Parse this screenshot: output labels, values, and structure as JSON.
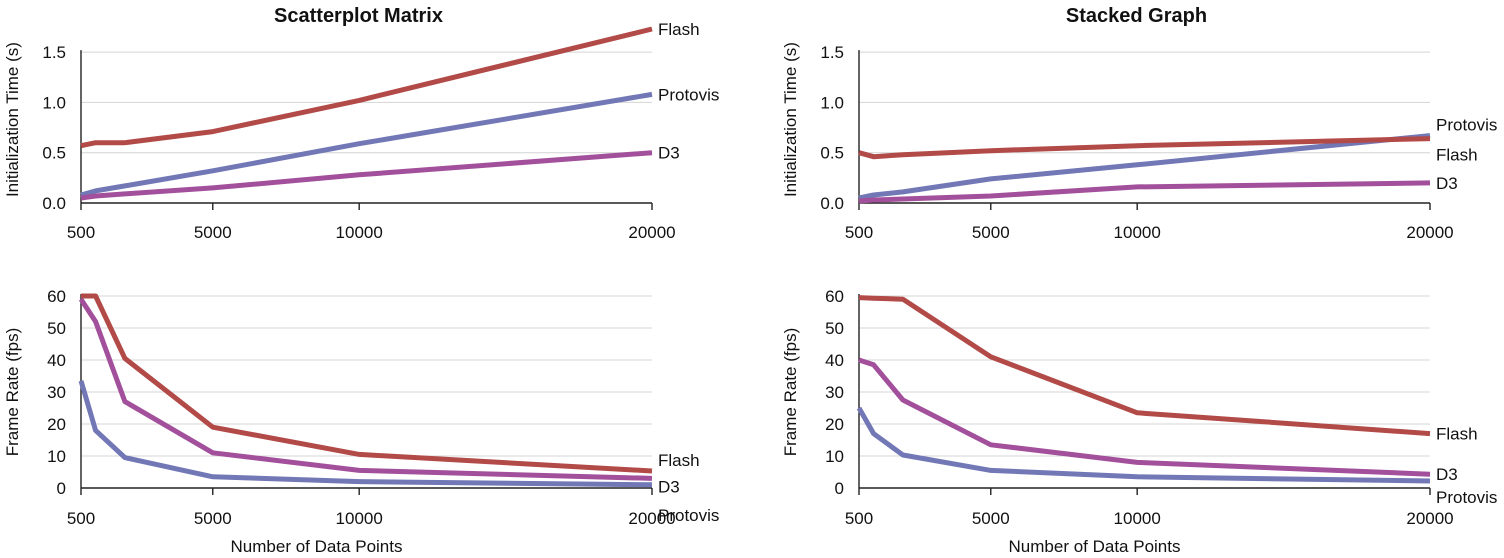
{
  "chart_data": [
    {
      "type": "line",
      "title": "Scatterplot Matrix",
      "xlabel": "",
      "ylabel": "Initialization Time (s)",
      "x_ticks": [
        500,
        5000,
        10000,
        20000
      ],
      "xlim": [
        500,
        20000
      ],
      "ylim": [
        0,
        1.75
      ],
      "y_ticks": [
        "0.0",
        "0.5",
        "1.0",
        "1.5"
      ],
      "y_tick_values": [
        0,
        0.5,
        1.0,
        1.5
      ],
      "grid": true,
      "series": [
        {
          "name": "Flash",
          "color": "#b24a48",
          "x": [
            500,
            1000,
            2000,
            5000,
            10000,
            20000
          ],
          "y": [
            0.57,
            0.6,
            0.6,
            0.71,
            1.02,
            1.73
          ]
        },
        {
          "name": "Protovis",
          "color": "#7277b6",
          "x": [
            500,
            1000,
            2000,
            5000,
            10000,
            20000
          ],
          "y": [
            0.08,
            0.12,
            0.17,
            0.32,
            0.59,
            1.08
          ]
        },
        {
          "name": "D3",
          "color": "#a3509c",
          "x": [
            500,
            1000,
            2000,
            5000,
            10000,
            20000
          ],
          "y": [
            0.05,
            0.07,
            0.09,
            0.15,
            0.28,
            0.5
          ]
        }
      ]
    },
    {
      "type": "line",
      "title": "Stacked Graph",
      "xlabel": "",
      "ylabel": "Initialization Time (s)",
      "x_ticks": [
        500,
        5000,
        10000,
        20000
      ],
      "xlim": [
        500,
        20000
      ],
      "ylim": [
        0,
        1.75
      ],
      "y_ticks": [
        "0.0",
        "0.5",
        "1.0",
        "1.5"
      ],
      "y_tick_values": [
        0,
        0.5,
        1.0,
        1.5
      ],
      "grid": true,
      "series": [
        {
          "name": "Protovis",
          "color": "#7277b6",
          "x": [
            500,
            1000,
            2000,
            5000,
            10000,
            20000
          ],
          "y": [
            0.05,
            0.08,
            0.11,
            0.24,
            0.38,
            0.67
          ]
        },
        {
          "name": "Flash",
          "color": "#b24a48",
          "x": [
            500,
            1000,
            2000,
            5000,
            10000,
            20000
          ],
          "y": [
            0.5,
            0.46,
            0.48,
            0.52,
            0.57,
            0.64
          ]
        },
        {
          "name": "D3",
          "color": "#a3509c",
          "x": [
            500,
            1000,
            2000,
            5000,
            10000,
            20000
          ],
          "y": [
            0.02,
            0.03,
            0.04,
            0.07,
            0.16,
            0.2
          ]
        }
      ]
    },
    {
      "type": "line",
      "title": "",
      "xlabel": "Number of Data Points",
      "ylabel": "Frame Rate (fps)",
      "x_ticks": [
        500,
        5000,
        10000,
        20000
      ],
      "xlim": [
        500,
        20000
      ],
      "ylim": [
        0,
        60
      ],
      "y_ticks": [
        "0",
        "10",
        "20",
        "30",
        "40",
        "50",
        "60"
      ],
      "y_tick_values": [
        0,
        10,
        20,
        30,
        40,
        50,
        60
      ],
      "grid": true,
      "series": [
        {
          "name": "Flash",
          "color": "#b24a48",
          "x": [
            500,
            1000,
            2000,
            5000,
            10000,
            20000
          ],
          "y": [
            60,
            60,
            40.5,
            19,
            10.5,
            5.3
          ]
        },
        {
          "name": "D3",
          "color": "#a3509c",
          "x": [
            500,
            1000,
            2000,
            5000,
            10000,
            20000
          ],
          "y": [
            59,
            52,
            27,
            11,
            5.5,
            3
          ]
        },
        {
          "name": "Protovis",
          "color": "#7277b6",
          "x": [
            500,
            1000,
            2000,
            5000,
            10000,
            20000
          ],
          "y": [
            33.5,
            18,
            9.5,
            3.5,
            2,
            1
          ]
        }
      ]
    },
    {
      "type": "line",
      "title": "",
      "xlabel": "Number of Data Points",
      "ylabel": "Frame Rate (fps)",
      "x_ticks": [
        500,
        5000,
        10000,
        20000
      ],
      "xlim": [
        500,
        20000
      ],
      "ylim": [
        0,
        60
      ],
      "y_ticks": [
        "0",
        "10",
        "20",
        "30",
        "40",
        "50",
        "60"
      ],
      "y_tick_values": [
        0,
        10,
        20,
        30,
        40,
        50,
        60
      ],
      "grid": true,
      "series": [
        {
          "name": "Flash",
          "color": "#b24a48",
          "x": [
            500,
            1000,
            2000,
            5000,
            10000,
            20000
          ],
          "y": [
            59.5,
            59.3,
            59,
            41,
            23.5,
            17
          ]
        },
        {
          "name": "D3",
          "color": "#a3509c",
          "x": [
            500,
            1000,
            2000,
            5000,
            10000,
            20000
          ],
          "y": [
            40,
            38.5,
            27.5,
            13.5,
            8,
            4.3
          ]
        },
        {
          "name": "Protovis",
          "color": "#7277b6",
          "x": [
            500,
            1000,
            2000,
            5000,
            10000,
            20000
          ],
          "y": [
            25,
            17,
            10.3,
            5.5,
            3.5,
            2.2
          ]
        }
      ]
    }
  ]
}
